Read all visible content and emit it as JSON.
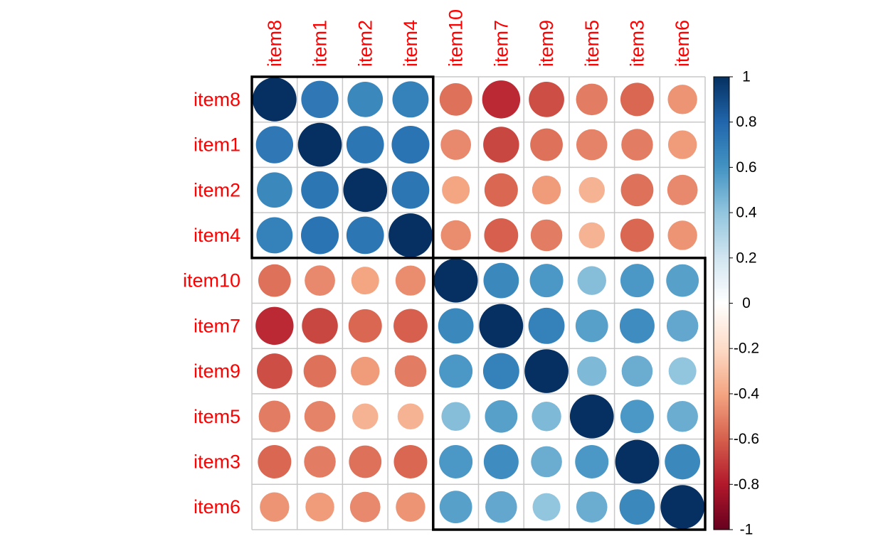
{
  "chart_data": {
    "type": "heatmap",
    "variables": [
      "item8",
      "item1",
      "item2",
      "item4",
      "item10",
      "item7",
      "item9",
      "item5",
      "item3",
      "item6"
    ],
    "correlations": [
      [
        1.0,
        0.72,
        0.65,
        0.68,
        -0.55,
        -0.75,
        -0.65,
        -0.52,
        -0.58,
        -0.45
      ],
      [
        0.72,
        1.0,
        0.73,
        0.74,
        -0.48,
        -0.67,
        -0.55,
        -0.5,
        -0.52,
        -0.43
      ],
      [
        0.65,
        0.73,
        1.0,
        0.73,
        -0.4,
        -0.58,
        -0.43,
        -0.35,
        -0.55,
        -0.48
      ],
      [
        0.68,
        0.74,
        0.73,
        1.0,
        -0.47,
        -0.6,
        -0.52,
        -0.35,
        -0.58,
        -0.45
      ],
      [
        -0.55,
        -0.48,
        -0.4,
        -0.47,
        1.0,
        0.65,
        0.58,
        0.43,
        0.58,
        0.55
      ],
      [
        -0.75,
        -0.67,
        -0.58,
        -0.6,
        0.65,
        1.0,
        0.68,
        0.55,
        0.63,
        0.52
      ],
      [
        -0.65,
        -0.55,
        -0.43,
        -0.52,
        0.58,
        0.68,
        1.0,
        0.45,
        0.5,
        0.4
      ],
      [
        -0.52,
        -0.5,
        -0.35,
        -0.35,
        0.43,
        0.55,
        0.45,
        1.0,
        0.58,
        0.5
      ],
      [
        -0.58,
        -0.52,
        -0.55,
        -0.58,
        0.58,
        0.63,
        0.5,
        0.58,
        1.0,
        0.65
      ],
      [
        -0.45,
        -0.43,
        -0.48,
        -0.45,
        0.55,
        0.52,
        0.4,
        0.5,
        0.65,
        1.0
      ]
    ],
    "clusters": [
      {
        "start": 0,
        "end": 3
      },
      {
        "start": 4,
        "end": 9
      }
    ],
    "label_color": "#FF0000",
    "grid_color": "#C8C8C8",
    "colorbar": {
      "range": [
        -1,
        1
      ],
      "ticks": [
        "1",
        "0.8",
        "0.6",
        "0.4",
        "0.2",
        "0",
        "-0.2",
        "-0.4",
        "-0.6",
        "-0.8",
        "-1"
      ],
      "palette": [
        "#67001F",
        "#B2182B",
        "#D6604D",
        "#F4A582",
        "#FDDBC7",
        "#FFFFFF",
        "#D1E5F0",
        "#92C5DE",
        "#4393C3",
        "#2166AC",
        "#053061"
      ]
    }
  }
}
